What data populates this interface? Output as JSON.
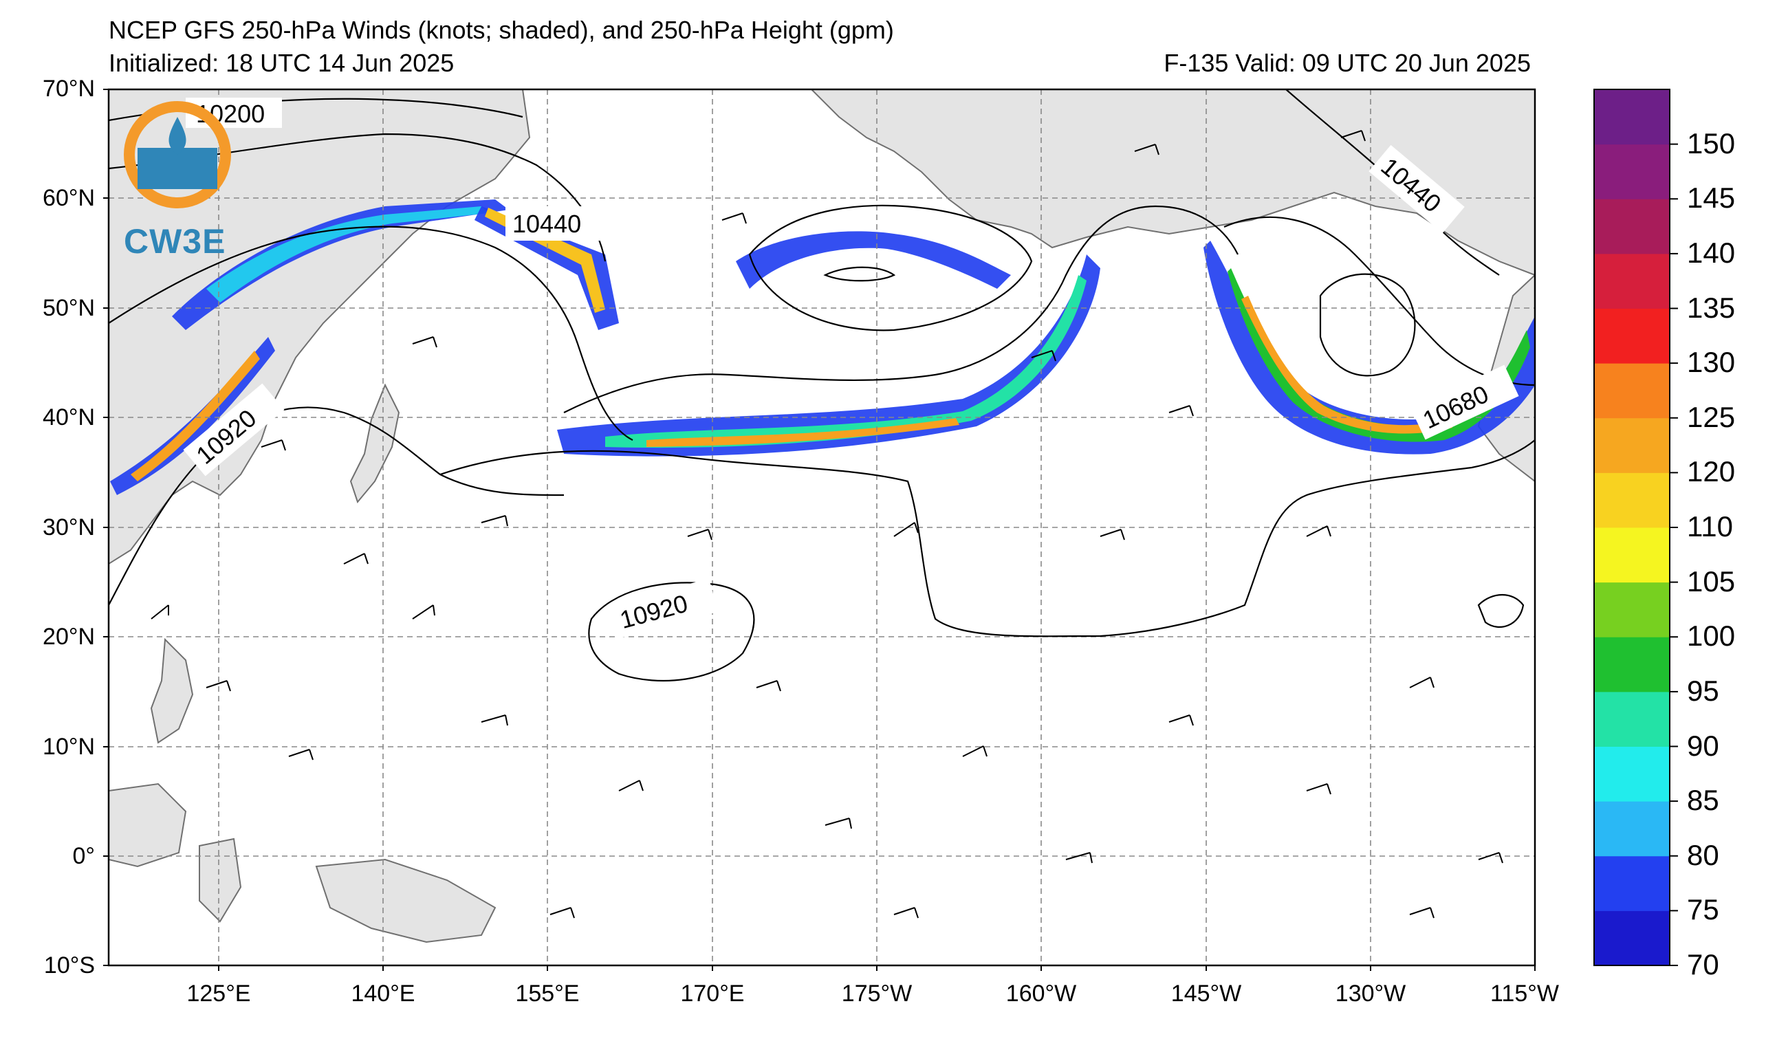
{
  "header": {
    "title": "NCEP GFS 250-hPa Winds (knots; shaded), and 250-hPa Height (gpm)",
    "initialized": "Initialized: 18 UTC 14 Jun 2025",
    "valid": "F-135  Valid: 09 UTC 20 Jun 2025"
  },
  "logo": {
    "text": "CW3E"
  },
  "axes": {
    "y_labels": [
      "70°N",
      "60°N",
      "50°N",
      "40°N",
      "30°N",
      "20°N",
      "10°N",
      "0°",
      "10°S"
    ],
    "x_labels": [
      "125°E",
      "140°E",
      "155°E",
      "170°E",
      "175°W",
      "160°W",
      "145°W",
      "130°W",
      "115°W"
    ]
  },
  "contour_labels": [
    "10200",
    "10440",
    "10440",
    "10920",
    "10920",
    "10680"
  ],
  "colorbar": {
    "labels": [
      "150",
      "145",
      "140",
      "135",
      "130",
      "125",
      "120",
      "110",
      "105",
      "100",
      "95",
      "90",
      "85",
      "80",
      "75",
      "70"
    ],
    "colors": [
      "#1a1acd",
      "#2340f0",
      "#2ab8f5",
      "#22ecec",
      "#23e2a6",
      "#1fc030",
      "#77d020",
      "#f5f520",
      "#f8d220",
      "#f6a720",
      "#f7821e",
      "#f22020",
      "#d61f3c",
      "#a81c5a",
      "#8a1d7c",
      "#6d1f88"
    ]
  },
  "colors": {
    "land": "#e4e4e4",
    "coast": "#707070",
    "grid": "#888888",
    "contour": "#000000",
    "jet_outer": "#2340f0",
    "jet_mid": "#22c8ee",
    "jet_core": "#f7a120",
    "logo": "#2f86b8",
    "logo_ring": "#f49a2a"
  }
}
